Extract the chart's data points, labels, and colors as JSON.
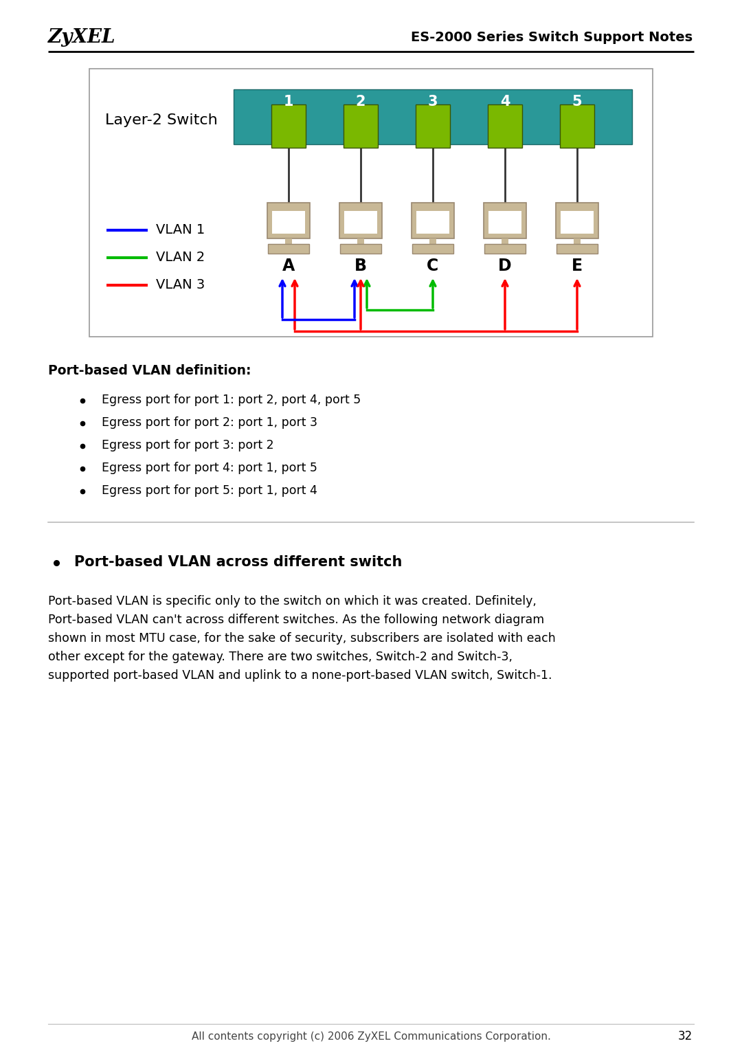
{
  "page_width": 10.8,
  "page_height": 15.28,
  "bg_color": "#ffffff",
  "header_zyxel": "ZyXEL",
  "header_title": "ES-2000 Series Switch Support Notes",
  "footer_text": "All contents copyright (c) 2006 ZyXEL Communications Corporation.",
  "page_number": "32",
  "switch_label": "Layer-2 Switch",
  "switch_color": "#2a9898",
  "port_numbers": [
    "1",
    "2",
    "3",
    "4",
    "5"
  ],
  "port_color": "#7ab800",
  "computer_labels": [
    "A",
    "B",
    "C",
    "D",
    "E"
  ],
  "vlan_legend": [
    {
      "label": "VLAN 1",
      "color": "#0000ff"
    },
    {
      "label": "VLAN 2",
      "color": "#00bb00"
    },
    {
      "label": "VLAN 3",
      "color": "#ff0000"
    }
  ],
  "section_title": "Port-based VLAN definition",
  "bullet_items": [
    "Egress port for port 1: port 2, port 4, port 5",
    "Egress port for port 2: port 1, port 3",
    "Egress port for port 3: port 2",
    "Egress port for port 4: port 1, port 5",
    "Egress port for port 5: port 1, port 4"
  ],
  "section2_title": "Port-based VLAN across different switch",
  "body_text": "Port-based VLAN is specific only to the switch on which it was created. Definitely,\nPort-based VLAN can't across different switches. As the following network diagram\nshown in most MTU case, for the sake of security, subscribers are isolated with each\nother except for the gateway. There are two switches, Switch-2 and Switch-3,\nsupported port-based VLAN and uplink to a none-port-based VLAN switch, Switch-1."
}
